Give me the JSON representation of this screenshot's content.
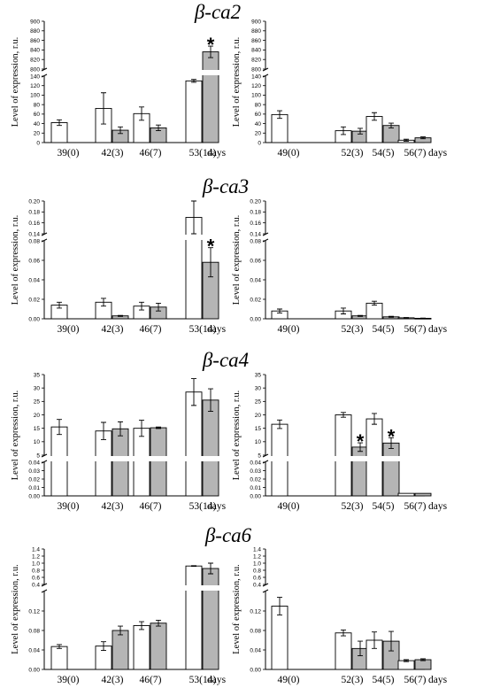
{
  "colors": {
    "control": "#ffffff",
    "treated": "#b5b5b5",
    "stroke": "#000000"
  },
  "chart_data": [
    {
      "type": "bar",
      "title": "β-ca2",
      "ylabel": "Level of expression, r.u.",
      "xlabel_suffix": "days",
      "axis_break": true,
      "ylim_lower": [
        0,
        140
      ],
      "ylim_upper": [
        800,
        900
      ],
      "lower_ticks": [
        "0",
        "20",
        "40",
        "60",
        "80",
        "100",
        "120",
        "140"
      ],
      "upper_ticks": [
        "800",
        "820",
        "840",
        "860",
        "880",
        "900"
      ],
      "categories": [
        "39(0)",
        "42(3)",
        "46(7)",
        "53(14)"
      ],
      "series": [
        {
          "values": [
            42,
            72,
            61,
            130
          ],
          "errors": [
            6,
            33,
            14,
            3
          ]
        },
        {
          "values": [
            null,
            26,
            31,
            836
          ],
          "errors": [
            null,
            7,
            6,
            12
          ]
        }
      ],
      "significance": [
        {
          "category": "53(14)",
          "series": 1,
          "label": "*"
        }
      ]
    },
    {
      "type": "bar",
      "title": "",
      "ylabel": "Level of expression, r.u.",
      "xlabel_suffix": "days",
      "axis_break": true,
      "ylim_lower": [
        0,
        140
      ],
      "ylim_upper": [
        800,
        900
      ],
      "lower_ticks": [
        "0",
        "20",
        "40",
        "60",
        "80",
        "100",
        "120",
        "140"
      ],
      "upper_ticks": [
        "800",
        "820",
        "840",
        "860",
        "880",
        "900"
      ],
      "categories": [
        "49(0)",
        "52(3)",
        "54(5)",
        "56(7)"
      ],
      "series": [
        {
          "values": [
            59,
            25,
            55,
            5
          ],
          "errors": [
            8,
            8,
            8,
            2
          ]
        },
        {
          "values": [
            null,
            24,
            36,
            10
          ],
          "errors": [
            null,
            6,
            5,
            2
          ]
        }
      ],
      "significance": []
    },
    {
      "type": "bar",
      "title": "β-ca3",
      "ylabel": "Level of expression, r.u.",
      "xlabel_suffix": "days",
      "axis_break": true,
      "ylim_lower": [
        0,
        0.08
      ],
      "ylim_upper": [
        0.14,
        0.2
      ],
      "lower_ticks": [
        "0.00",
        "0.02",
        "0.04",
        "0.06",
        "0.08"
      ],
      "upper_ticks": [
        "0.14",
        "0.16",
        "0.18",
        "0.20"
      ],
      "categories": [
        "39(0)",
        "42(3)",
        "46(7)",
        "53(14)"
      ],
      "series": [
        {
          "values": [
            0.014,
            0.017,
            0.013,
            0.17
          ],
          "errors": [
            0.003,
            0.004,
            0.004,
            0.03
          ]
        },
        {
          "values": [
            null,
            0.003,
            0.012,
            0.058
          ],
          "errors": [
            null,
            0.0005,
            0.004,
            0.015
          ]
        }
      ],
      "significance": [
        {
          "category": "53(14)",
          "series": 1,
          "label": "*"
        }
      ]
    },
    {
      "type": "bar",
      "title": "",
      "ylabel": "Level of expression, r.u.",
      "xlabel_suffix": "days",
      "axis_break": true,
      "ylim_lower": [
        0,
        0.08
      ],
      "ylim_upper": [
        0.14,
        0.2
      ],
      "lower_ticks": [
        "0.00",
        "0.02",
        "0.04",
        "0.06",
        "0.08"
      ],
      "upper_ticks": [
        "0.14",
        "0.16",
        "0.18",
        "0.20"
      ],
      "categories": [
        "49(0)",
        "52(3)",
        "54(5)",
        "56(7)"
      ],
      "series": [
        {
          "values": [
            0.008,
            0.008,
            0.016,
            0.001
          ],
          "errors": [
            0.002,
            0.003,
            0.002,
            0.0003
          ]
        },
        {
          "values": [
            null,
            0.003,
            0.002,
            0.0005
          ],
          "errors": [
            null,
            0.0005,
            0.0005,
            0.0002
          ]
        }
      ],
      "significance": []
    },
    {
      "type": "bar",
      "title": "β-ca4",
      "ylabel": "Level of expression, r.u.",
      "xlabel_suffix": "days",
      "axis_break": true,
      "ylim_lower": [
        0,
        0.04
      ],
      "ylim_upper": [
        5,
        35
      ],
      "lower_ticks": [
        "0.00",
        "0.01",
        "0.02",
        "0.03",
        "0.04"
      ],
      "upper_ticks": [
        "5",
        "10",
        "15",
        "20",
        "25",
        "30",
        "35"
      ],
      "categories": [
        "39(0)",
        "42(3)",
        "46(7)",
        "53(14)"
      ],
      "series": [
        {
          "values": [
            15.5,
            14,
            15,
            28.5
          ],
          "errors": [
            2.8,
            3.2,
            3,
            5
          ]
        },
        {
          "values": [
            null,
            14.8,
            15.2,
            25.5
          ],
          "errors": [
            null,
            2.6,
            0.3,
            4.2
          ]
        }
      ],
      "significance": []
    },
    {
      "type": "bar",
      "title": "",
      "ylabel": "Level of expression, r.u.",
      "xlabel_suffix": "days",
      "axis_break": true,
      "ylim_lower": [
        0,
        0.04
      ],
      "ylim_upper": [
        5,
        35
      ],
      "lower_ticks": [
        "0.00",
        "0.01",
        "0.02",
        "0.03",
        "0.04"
      ],
      "upper_ticks": [
        "5",
        "10",
        "15",
        "20",
        "25",
        "30",
        "35"
      ],
      "categories": [
        "49(0)",
        "52(3)",
        "54(5)",
        "56(7)"
      ],
      "series": [
        {
          "values": [
            16.5,
            20,
            18.5,
            0.003
          ],
          "errors": [
            1.6,
            0.9,
            2,
            0
          ]
        },
        {
          "values": [
            null,
            8,
            9.5,
            0.003
          ],
          "errors": [
            null,
            1.6,
            2,
            0
          ]
        }
      ],
      "significance": [
        {
          "category": "52(3)",
          "series": 1,
          "label": "*"
        },
        {
          "category": "54(5)",
          "series": 1,
          "label": "*"
        }
      ]
    },
    {
      "type": "bar",
      "title": "β-ca6",
      "ylabel": "Level of expression, r.u.",
      "xlabel_suffix": "days",
      "axis_break": true,
      "ylim_lower": [
        0,
        0.16
      ],
      "ylim_upper": [
        0.4,
        1.4
      ],
      "lower_ticks": [
        "0.00",
        "0.04",
        "0.08",
        "0.12"
      ],
      "upper_ticks": [
        "0.4",
        "0.6",
        "0.8",
        "1.0",
        "1.2",
        "1.4"
      ],
      "categories": [
        "39(0)",
        "42(3)",
        "46(7)",
        "53(14)"
      ],
      "series": [
        {
          "values": [
            0.047,
            0.048,
            0.09,
            0.92
          ],
          "errors": [
            0.004,
            0.009,
            0.008,
            0.01
          ]
        },
        {
          "values": [
            null,
            0.08,
            0.095,
            0.85
          ],
          "errors": [
            null,
            0.009,
            0.006,
            0.15
          ]
        }
      ],
      "significance": []
    },
    {
      "type": "bar",
      "title": "",
      "ylabel": "Level of expression, r.u.",
      "xlabel_suffix": "days",
      "axis_break": true,
      "ylim_lower": [
        0,
        0.16
      ],
      "ylim_upper": [
        0.4,
        1.4
      ],
      "lower_ticks": [
        "0.00",
        "0.04",
        "0.08",
        "0.12"
      ],
      "upper_ticks": [
        "0.4",
        "0.6",
        "0.8",
        "1.0",
        "1.2",
        "1.4"
      ],
      "categories": [
        "49(0)",
        "52(3)",
        "54(5)",
        "56(7)"
      ],
      "series": [
        {
          "values": [
            0.13,
            0.075,
            0.06,
            0.018
          ],
          "errors": [
            0.018,
            0.006,
            0.017,
            0.002
          ]
        },
        {
          "values": [
            null,
            0.043,
            0.058,
            0.02
          ],
          "errors": [
            null,
            0.015,
            0.02,
            0.002
          ]
        }
      ],
      "significance": []
    }
  ]
}
